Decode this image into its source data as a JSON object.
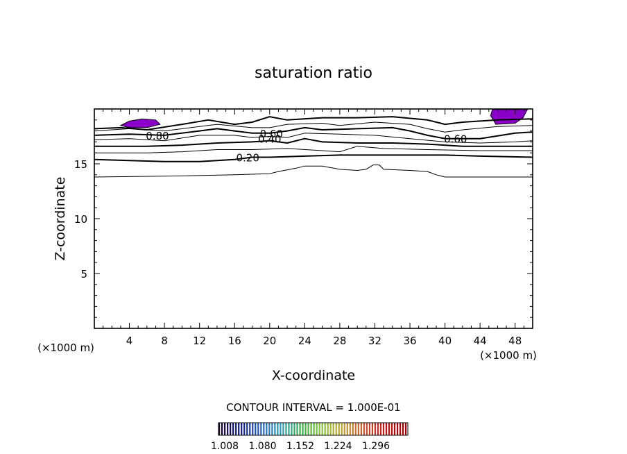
{
  "chart_data": {
    "type": "contour",
    "title": "saturation ratio",
    "xlabel": "X-coordinate",
    "ylabel": "Z-coordinate",
    "x_unit_left": "(×1000 m)",
    "x_unit_right": "(×1000 m)",
    "xlim": [
      0,
      50
    ],
    "ylim": [
      0,
      20
    ],
    "x_ticks": [
      4,
      8,
      12,
      16,
      20,
      24,
      28,
      32,
      36,
      40,
      44,
      48
    ],
    "y_ticks": [
      5,
      10,
      15
    ],
    "contour_labels": [
      {
        "text": "0.80",
        "x": 7.2,
        "y": 17.6
      },
      {
        "text": "0.60",
        "x": 20.2,
        "y": 17.8
      },
      {
        "text": "0.40",
        "x": 20.0,
        "y": 17.3
      },
      {
        "text": "0.20",
        "x": 17.5,
        "y": 15.6
      },
      {
        "text": "0.60",
        "x": 41.2,
        "y": 17.3
      }
    ],
    "contour_lines": [
      {
        "level": 0.1,
        "bold": false,
        "points": [
          [
            0,
            13.8
          ],
          [
            10,
            13.9
          ],
          [
            16,
            14.0
          ],
          [
            20,
            14.1
          ],
          [
            21,
            14.3
          ],
          [
            23,
            14.6
          ],
          [
            24,
            14.8
          ],
          [
            26,
            14.8
          ],
          [
            28,
            14.5
          ],
          [
            30,
            14.4
          ],
          [
            31,
            14.5
          ],
          [
            31.8,
            14.9
          ],
          [
            32.5,
            14.9
          ],
          [
            33,
            14.5
          ],
          [
            36,
            14.4
          ],
          [
            38,
            14.3
          ],
          [
            39,
            14.0
          ],
          [
            40,
            13.8
          ],
          [
            50,
            13.8
          ]
        ]
      },
      {
        "level": 0.2,
        "bold": true,
        "points": [
          [
            0,
            15.4
          ],
          [
            8,
            15.2
          ],
          [
            12,
            15.2
          ],
          [
            16,
            15.4
          ],
          [
            18,
            15.6
          ],
          [
            20,
            15.6
          ],
          [
            24,
            15.7
          ],
          [
            28,
            15.8
          ],
          [
            32,
            15.8
          ],
          [
            36,
            15.8
          ],
          [
            40,
            15.8
          ],
          [
            44,
            15.7
          ],
          [
            50,
            15.6
          ]
        ]
      },
      {
        "level": 0.3,
        "bold": false,
        "points": [
          [
            0,
            16.0
          ],
          [
            6,
            16.0
          ],
          [
            10,
            16.1
          ],
          [
            14,
            16.3
          ],
          [
            18,
            16.3
          ],
          [
            22,
            16.4
          ],
          [
            26,
            16.2
          ],
          [
            28,
            16.1
          ],
          [
            30,
            16.6
          ],
          [
            33,
            16.4
          ],
          [
            38,
            16.3
          ],
          [
            44,
            16.2
          ],
          [
            50,
            16.2
          ]
        ]
      },
      {
        "level": 0.4,
        "bold": true,
        "points": [
          [
            0,
            16.6
          ],
          [
            6,
            16.6
          ],
          [
            10,
            16.7
          ],
          [
            14,
            16.9
          ],
          [
            18,
            17.0
          ],
          [
            20,
            17.1
          ],
          [
            22,
            16.9
          ],
          [
            24,
            17.3
          ],
          [
            26,
            17.0
          ],
          [
            30,
            16.9
          ],
          [
            34,
            16.9
          ],
          [
            38,
            16.8
          ],
          [
            42,
            16.6
          ],
          [
            46,
            16.6
          ],
          [
            50,
            16.6
          ]
        ]
      },
      {
        "level": 0.5,
        "bold": false,
        "points": [
          [
            0,
            17.2
          ],
          [
            4,
            17.3
          ],
          [
            8,
            17.1
          ],
          [
            12,
            17.6
          ],
          [
            16,
            17.6
          ],
          [
            18,
            17.4
          ],
          [
            20,
            17.5
          ],
          [
            22,
            17.4
          ],
          [
            24,
            17.8
          ],
          [
            28,
            17.7
          ],
          [
            32,
            17.6
          ],
          [
            36,
            17.3
          ],
          [
            40,
            17.0
          ],
          [
            44,
            16.9
          ],
          [
            48,
            17.0
          ],
          [
            50,
            17.1
          ]
        ]
      },
      {
        "level": 0.6,
        "bold": true,
        "points": [
          [
            0,
            17.6
          ],
          [
            4,
            17.7
          ],
          [
            8,
            17.6
          ],
          [
            12,
            18.0
          ],
          [
            14,
            18.2
          ],
          [
            16,
            18.0
          ],
          [
            18,
            17.8
          ],
          [
            20,
            17.8
          ],
          [
            22,
            18.0
          ],
          [
            24,
            18.3
          ],
          [
            26,
            18.1
          ],
          [
            30,
            18.2
          ],
          [
            34,
            18.3
          ],
          [
            36,
            18.0
          ],
          [
            38,
            17.6
          ],
          [
            40,
            17.3
          ],
          [
            44,
            17.3
          ],
          [
            48,
            17.8
          ],
          [
            50,
            17.9
          ]
        ]
      },
      {
        "level": 0.7,
        "bold": false,
        "points": [
          [
            0,
            18.0
          ],
          [
            4,
            18.2
          ],
          [
            8,
            18.0
          ],
          [
            12,
            18.4
          ],
          [
            14,
            18.6
          ],
          [
            18,
            18.3
          ],
          [
            20,
            18.3
          ],
          [
            22,
            18.6
          ],
          [
            26,
            18.7
          ],
          [
            28,
            18.5
          ],
          [
            32,
            18.8
          ],
          [
            36,
            18.6
          ],
          [
            38,
            18.2
          ],
          [
            40,
            17.9
          ],
          [
            42,
            18.1
          ],
          [
            46,
            18.4
          ],
          [
            50,
            18.5
          ]
        ]
      },
      {
        "level": 0.8,
        "bold": true,
        "points": [
          [
            0,
            18.2
          ],
          [
            3,
            18.3
          ],
          [
            6,
            18.1
          ],
          [
            10,
            18.6
          ],
          [
            13,
            19.0
          ],
          [
            16,
            18.6
          ],
          [
            18,
            18.8
          ],
          [
            20,
            19.3
          ],
          [
            22,
            19.0
          ],
          [
            26,
            19.2
          ],
          [
            30,
            19.2
          ],
          [
            34,
            19.3
          ],
          [
            38,
            19.0
          ],
          [
            40,
            18.6
          ],
          [
            42,
            18.8
          ],
          [
            46,
            19.0
          ],
          [
            50,
            19.1
          ]
        ]
      }
    ],
    "filled_regions": [
      {
        "color": "#8a00c8",
        "points": [
          [
            3,
            18.5
          ],
          [
            4,
            18.9
          ],
          [
            5.5,
            19.1
          ],
          [
            7,
            19.0
          ],
          [
            7.5,
            18.6
          ],
          [
            6,
            18.3
          ],
          [
            4,
            18.3
          ]
        ]
      },
      {
        "color": "#8a00c8",
        "points": [
          [
            45.4,
            19.95
          ],
          [
            45.2,
            19.4
          ],
          [
            45.8,
            18.6
          ],
          [
            48,
            18.7
          ],
          [
            48.9,
            19.2
          ],
          [
            49.4,
            19.95
          ]
        ]
      }
    ],
    "contour_interval_text": "CONTOUR INTERVAL = 1.000E-01",
    "colorbar_ticks": [
      "1.008",
      "1.080",
      "1.152",
      "1.224",
      "1.296"
    ],
    "colorbar_colors": [
      "#1a0033",
      "#0a1c8c",
      "#1e64d2",
      "#28a0b4",
      "#32b43c",
      "#8cc832",
      "#c8a028",
      "#d25028",
      "#c81414",
      "#a00000"
    ]
  }
}
